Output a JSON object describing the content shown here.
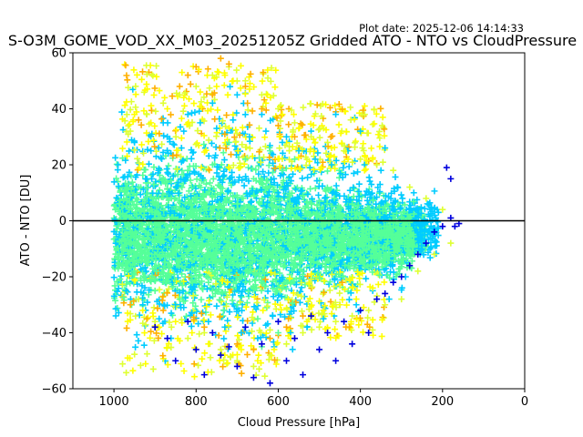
{
  "plot_date": "Plot date: 2025-12-06 14:14:33",
  "chart_data": {
    "type": "scatter",
    "title": "S-O3M_GOME_VOD_XX_M03_20251205Z Gridded ATO - NTO vs CloudPressure",
    "xlabel": "Cloud Pressure [hPa]",
    "ylabel": "ATO - NTO [DU]",
    "xlim": [
      1100,
      0
    ],
    "ylim": [
      -60,
      60
    ],
    "x_ticks": [
      1000,
      800,
      600,
      400,
      200,
      0
    ],
    "y_ticks": [
      -60,
      -40,
      -20,
      0,
      20,
      40,
      60
    ],
    "x_tick_labels": [
      "1000",
      "800",
      "600",
      "400",
      "200",
      "0"
    ],
    "y_tick_labels": [
      "−60",
      "−40",
      "−20",
      "0",
      "20",
      "40",
      "60"
    ],
    "marker": "+",
    "grid": false,
    "reference_line_y": 0,
    "colors": {
      "spring_green": "#55ff99",
      "cyan": "#00ccff",
      "deep_blue": "#0000dd",
      "yellow": "#ffff00",
      "light_yellow": "#dfff33",
      "orange": "#ffb000",
      "reference_line": "#000000"
    },
    "series": [
      {
        "color": "#55ff99",
        "points": [
          [
            980,
            5
          ],
          [
            960,
            -8
          ],
          [
            940,
            12
          ],
          [
            920,
            -15
          ],
          [
            900,
            3
          ],
          [
            880,
            -20
          ],
          [
            860,
            8
          ],
          [
            840,
            -5
          ],
          [
            820,
            18
          ],
          [
            800,
            -12
          ],
          [
            780,
            2
          ],
          [
            760,
            -25
          ],
          [
            740,
            10
          ],
          [
            720,
            -18
          ],
          [
            700,
            6
          ],
          [
            680,
            -10
          ],
          [
            660,
            15
          ],
          [
            640,
            -22
          ],
          [
            620,
            0
          ],
          [
            600,
            -6
          ],
          [
            580,
            4
          ],
          [
            560,
            -14
          ],
          [
            540,
            9
          ],
          [
            520,
            -3
          ],
          [
            500,
            7
          ],
          [
            480,
            -9
          ],
          [
            460,
            2
          ],
          [
            440,
            -4
          ],
          [
            420,
            6
          ],
          [
            400,
            -7
          ],
          [
            380,
            3
          ],
          [
            360,
            -2
          ],
          [
            340,
            5
          ],
          [
            320,
            -5
          ],
          [
            300,
            1
          ],
          [
            280,
            -3
          ],
          [
            700,
            -30
          ],
          [
            650,
            -35
          ],
          [
            600,
            -40
          ],
          [
            680,
            22
          ],
          [
            620,
            25
          ],
          [
            760,
            20
          ],
          [
            840,
            -28
          ],
          [
            880,
            15
          ],
          [
            900,
            -25
          ],
          [
            950,
            -18
          ],
          [
            720,
            28
          ],
          [
            640,
            -45
          ],
          [
            590,
            18
          ],
          [
            560,
            22
          ]
        ]
      },
      {
        "color": "#00ccff",
        "points": [
          [
            990,
            20
          ],
          [
            970,
            -25
          ],
          [
            950,
            28
          ],
          [
            930,
            -30
          ],
          [
            910,
            25
          ],
          [
            890,
            -35
          ],
          [
            870,
            30
          ],
          [
            850,
            -30
          ],
          [
            830,
            32
          ],
          [
            810,
            -33
          ],
          [
            790,
            35
          ],
          [
            770,
            -36
          ],
          [
            750,
            33
          ],
          [
            730,
            -38
          ],
          [
            710,
            36
          ],
          [
            690,
            -40
          ],
          [
            670,
            30
          ],
          [
            650,
            -42
          ],
          [
            630,
            32
          ],
          [
            610,
            -45
          ],
          [
            590,
            28
          ],
          [
            570,
            -40
          ],
          [
            550,
            25
          ],
          [
            530,
            -38
          ],
          [
            510,
            22
          ],
          [
            490,
            -35
          ],
          [
            470,
            20
          ],
          [
            450,
            -30
          ],
          [
            430,
            25
          ],
          [
            410,
            -30
          ],
          [
            390,
            20
          ],
          [
            370,
            -25
          ],
          [
            350,
            18
          ],
          [
            330,
            -28
          ],
          [
            310,
            12
          ],
          [
            290,
            -20
          ],
          [
            270,
            10
          ],
          [
            250,
            -10
          ],
          [
            230,
            -5
          ],
          [
            210,
            3
          ],
          [
            880,
            35
          ],
          [
            820,
            38
          ],
          [
            760,
            42
          ],
          [
            700,
            45
          ],
          [
            640,
            38
          ],
          [
            580,
            30
          ],
          [
            520,
            32
          ],
          [
            460,
            38
          ],
          [
            400,
            32
          ],
          [
            340,
            26
          ]
        ]
      },
      {
        "color": "#dfff33",
        "points": [
          [
            960,
            32
          ],
          [
            940,
            -28
          ],
          [
            920,
            38
          ],
          [
            900,
            -36
          ],
          [
            880,
            42
          ],
          [
            860,
            -38
          ],
          [
            840,
            45
          ],
          [
            820,
            -42
          ],
          [
            800,
            48
          ],
          [
            780,
            -40
          ],
          [
            760,
            52
          ],
          [
            740,
            -46
          ],
          [
            720,
            55
          ],
          [
            700,
            -50
          ],
          [
            680,
            50
          ],
          [
            660,
            -52
          ],
          [
            640,
            45
          ],
          [
            620,
            -48
          ],
          [
            600,
            40
          ],
          [
            580,
            -44
          ],
          [
            560,
            35
          ],
          [
            540,
            -40
          ],
          [
            520,
            30
          ],
          [
            500,
            -38
          ],
          [
            480,
            28
          ],
          [
            460,
            -36
          ],
          [
            440,
            25
          ],
          [
            420,
            -34
          ],
          [
            400,
            22
          ],
          [
            380,
            -32
          ],
          [
            360,
            20
          ],
          [
            340,
            -30
          ],
          [
            320,
            18
          ],
          [
            300,
            -28
          ],
          [
            280,
            12
          ],
          [
            260,
            -18
          ],
          [
            240,
            8
          ],
          [
            220,
            -12
          ],
          [
            200,
            4
          ],
          [
            180,
            -8
          ]
        ]
      },
      {
        "color": "#ffff00",
        "points": [
          [
            950,
            38
          ],
          [
            930,
            -32
          ],
          [
            910,
            35
          ],
          [
            890,
            -38
          ],
          [
            870,
            40
          ],
          [
            850,
            -36
          ],
          [
            830,
            44
          ],
          [
            810,
            -40
          ],
          [
            790,
            46
          ],
          [
            770,
            -44
          ],
          [
            750,
            48
          ],
          [
            730,
            -48
          ],
          [
            710,
            50
          ],
          [
            690,
            -46
          ],
          [
            670,
            47
          ],
          [
            650,
            -50
          ],
          [
            630,
            42
          ],
          [
            610,
            -46
          ],
          [
            590,
            38
          ],
          [
            570,
            -42
          ],
          [
            550,
            33
          ],
          [
            530,
            -36
          ],
          [
            510,
            28
          ],
          [
            490,
            -32
          ],
          [
            470,
            26
          ],
          [
            450,
            -30
          ],
          [
            430,
            22
          ],
          [
            410,
            -28
          ],
          [
            390,
            18
          ],
          [
            370,
            -24
          ]
        ]
      },
      {
        "color": "#ffb000",
        "points": [
          [
            960,
            -30
          ],
          [
            940,
            36
          ],
          [
            920,
            -35
          ],
          [
            880,
            -32
          ],
          [
            840,
            48
          ],
          [
            820,
            52
          ],
          [
            800,
            55
          ],
          [
            780,
            -38
          ],
          [
            760,
            45
          ],
          [
            740,
            58
          ],
          [
            720,
            56
          ],
          [
            700,
            -44
          ],
          [
            680,
            48
          ],
          [
            660,
            -46
          ],
          [
            640,
            40
          ],
          [
            620,
            -42
          ],
          [
            600,
            34
          ],
          [
            580,
            -38
          ],
          [
            560,
            30
          ],
          [
            540,
            -34
          ]
        ]
      },
      {
        "color": "#0000dd",
        "points": [
          [
            900,
            -38
          ],
          [
            870,
            -42
          ],
          [
            850,
            -50
          ],
          [
            820,
            -36
          ],
          [
            800,
            -46
          ],
          [
            780,
            -55
          ],
          [
            760,
            -40
          ],
          [
            740,
            -48
          ],
          [
            720,
            -45
          ],
          [
            700,
            -52
          ],
          [
            680,
            -38
          ],
          [
            660,
            -56
          ],
          [
            640,
            -44
          ],
          [
            620,
            -58
          ],
          [
            600,
            -36
          ],
          [
            580,
            -50
          ],
          [
            560,
            -42
          ],
          [
            540,
            -55
          ],
          [
            520,
            -34
          ],
          [
            500,
            -46
          ],
          [
            480,
            -40
          ],
          [
            460,
            -50
          ],
          [
            440,
            -36
          ],
          [
            420,
            -44
          ],
          [
            400,
            -32
          ],
          [
            380,
            -40
          ],
          [
            360,
            -28
          ],
          [
            340,
            -26
          ],
          [
            320,
            -22
          ],
          [
            300,
            -20
          ],
          [
            280,
            -16
          ],
          [
            260,
            -12
          ],
          [
            240,
            -8
          ],
          [
            220,
            -4
          ],
          [
            200,
            -2
          ],
          [
            180,
            1
          ],
          [
            160,
            -1
          ],
          [
            190,
            19
          ],
          [
            180,
            15
          ],
          [
            170,
            -2
          ]
        ]
      }
    ],
    "scatter_hint": "dense core spans ~1000–250 hPa, -25 to +25 DU"
  }
}
